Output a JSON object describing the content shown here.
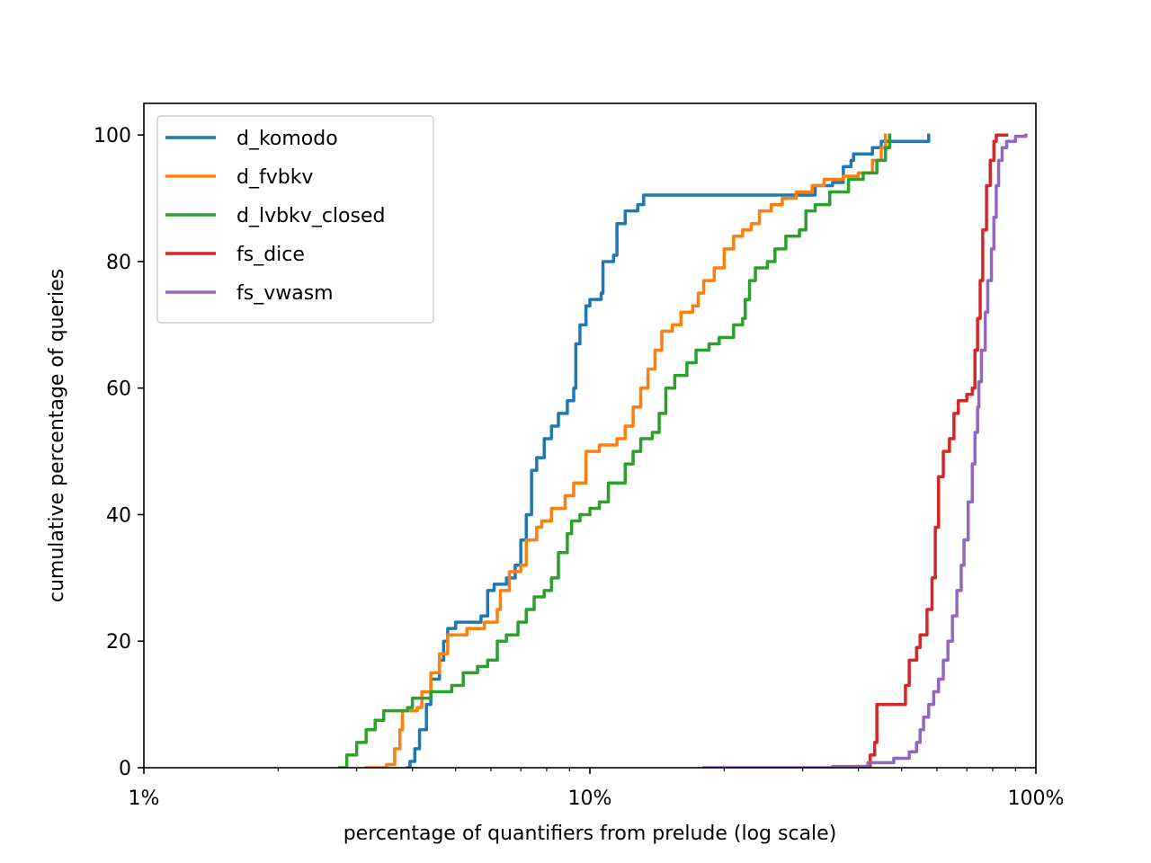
{
  "chart_data": {
    "type": "line",
    "title": "",
    "xlabel": "percentage of quantifiers from prelude (log scale)",
    "ylabel": "cumulative percentage of queries",
    "x_scale": "log",
    "xlim": [
      1,
      100
    ],
    "ylim": [
      0,
      105
    ],
    "x_ticks": [
      {
        "value": 1,
        "label": "1%"
      },
      {
        "value": 10,
        "label": "10%"
      },
      {
        "value": 100,
        "label": "100%"
      }
    ],
    "y_ticks": [
      {
        "value": 0,
        "label": "0"
      },
      {
        "value": 20,
        "label": "20"
      },
      {
        "value": 40,
        "label": "40"
      },
      {
        "value": 60,
        "label": "60"
      },
      {
        "value": 80,
        "label": "80"
      },
      {
        "value": 100,
        "label": "100"
      }
    ],
    "grid": false,
    "legend_position": "top-left",
    "series": [
      {
        "name": "d_komodo",
        "color": "#1f77b4",
        "points": [
          [
            3.9,
            0
          ],
          [
            3.95,
            1
          ],
          [
            4.05,
            3
          ],
          [
            4.15,
            6
          ],
          [
            4.3,
            10
          ],
          [
            4.4,
            14
          ],
          [
            4.6,
            17
          ],
          [
            4.7,
            20
          ],
          [
            4.8,
            22
          ],
          [
            5.0,
            23
          ],
          [
            5.5,
            23
          ],
          [
            5.7,
            24
          ],
          [
            5.9,
            28
          ],
          [
            6.1,
            29
          ],
          [
            6.5,
            30
          ],
          [
            6.8,
            32
          ],
          [
            7.0,
            36
          ],
          [
            7.2,
            40
          ],
          [
            7.4,
            47
          ],
          [
            7.6,
            49
          ],
          [
            7.9,
            52
          ],
          [
            8.2,
            54
          ],
          [
            8.5,
            56
          ],
          [
            8.9,
            58
          ],
          [
            9.2,
            60
          ],
          [
            9.3,
            67
          ],
          [
            9.5,
            70
          ],
          [
            9.8,
            73
          ],
          [
            10.0,
            74
          ],
          [
            10.6,
            75
          ],
          [
            10.7,
            80
          ],
          [
            11.3,
            81
          ],
          [
            11.5,
            86
          ],
          [
            12.0,
            88
          ],
          [
            12.8,
            89
          ],
          [
            13.2,
            90.5
          ],
          [
            27.0,
            90.5
          ],
          [
            32.0,
            92
          ],
          [
            35.0,
            92.5
          ],
          [
            37.0,
            95
          ],
          [
            38.5,
            96
          ],
          [
            39.0,
            97
          ],
          [
            43.0,
            98
          ],
          [
            45.0,
            99
          ],
          [
            56.0,
            99
          ],
          [
            57.5,
            100
          ]
        ]
      },
      {
        "name": "d_fvbkv",
        "color": "#ff7f0e",
        "points": [
          [
            3.15,
            0
          ],
          [
            3.5,
            0.5
          ],
          [
            3.65,
            3
          ],
          [
            3.75,
            6
          ],
          [
            3.8,
            9
          ],
          [
            4.1,
            9.5
          ],
          [
            4.2,
            12
          ],
          [
            4.4,
            15
          ],
          [
            4.6,
            18
          ],
          [
            4.8,
            21
          ],
          [
            5.3,
            22
          ],
          [
            5.8,
            23
          ],
          [
            6.2,
            25
          ],
          [
            6.3,
            28
          ],
          [
            6.6,
            31
          ],
          [
            7.0,
            32
          ],
          [
            7.2,
            36
          ],
          [
            7.6,
            38
          ],
          [
            7.8,
            39
          ],
          [
            8.2,
            41
          ],
          [
            8.8,
            43
          ],
          [
            9.2,
            45
          ],
          [
            9.8,
            50
          ],
          [
            10.5,
            51
          ],
          [
            11.5,
            52
          ],
          [
            12.0,
            54
          ],
          [
            12.5,
            57
          ],
          [
            13.0,
            60
          ],
          [
            13.5,
            63
          ],
          [
            14.0,
            66
          ],
          [
            14.5,
            69
          ],
          [
            15.3,
            70
          ],
          [
            16.0,
            72
          ],
          [
            17.0,
            73
          ],
          [
            17.5,
            75
          ],
          [
            18.0,
            77
          ],
          [
            19.0,
            79
          ],
          [
            20.0,
            82
          ],
          [
            21.0,
            84
          ],
          [
            22.0,
            85
          ],
          [
            23.0,
            86
          ],
          [
            24.0,
            88
          ],
          [
            25.5,
            89
          ],
          [
            27.0,
            90
          ],
          [
            29.0,
            91
          ],
          [
            31.5,
            92
          ],
          [
            33.5,
            93
          ],
          [
            37.0,
            93.5
          ],
          [
            40.0,
            94
          ],
          [
            43.0,
            96
          ],
          [
            45.0,
            98
          ],
          [
            46.0,
            100
          ]
        ]
      },
      {
        "name": "d_lvbkv_closed",
        "color": "#2ca02c",
        "points": [
          [
            2.75,
            0
          ],
          [
            2.85,
            2
          ],
          [
            3.0,
            4
          ],
          [
            3.15,
            6
          ],
          [
            3.3,
            7.5
          ],
          [
            3.45,
            9
          ],
          [
            3.9,
            9.5
          ],
          [
            4.0,
            11
          ],
          [
            4.4,
            12
          ],
          [
            4.9,
            13
          ],
          [
            5.2,
            15
          ],
          [
            5.6,
            16
          ],
          [
            5.9,
            17
          ],
          [
            6.2,
            20
          ],
          [
            6.5,
            21
          ],
          [
            6.9,
            23
          ],
          [
            7.2,
            25
          ],
          [
            7.5,
            27
          ],
          [
            7.9,
            28
          ],
          [
            8.2,
            30
          ],
          [
            8.5,
            34
          ],
          [
            8.9,
            37
          ],
          [
            9.1,
            39
          ],
          [
            9.5,
            40
          ],
          [
            10.0,
            41
          ],
          [
            10.5,
            42
          ],
          [
            11.0,
            45
          ],
          [
            12.0,
            48
          ],
          [
            12.5,
            50
          ],
          [
            13.0,
            52
          ],
          [
            13.8,
            53
          ],
          [
            14.3,
            56
          ],
          [
            14.8,
            60
          ],
          [
            15.5,
            62
          ],
          [
            16.5,
            64
          ],
          [
            17.3,
            66
          ],
          [
            18.5,
            67
          ],
          [
            19.5,
            68
          ],
          [
            21.0,
            70
          ],
          [
            22.0,
            71
          ],
          [
            22.3,
            74
          ],
          [
            22.8,
            77
          ],
          [
            23.5,
            79
          ],
          [
            25.0,
            80
          ],
          [
            26.0,
            82
          ],
          [
            27.5,
            84
          ],
          [
            29.5,
            85
          ],
          [
            30.5,
            88
          ],
          [
            32.0,
            89
          ],
          [
            34.5,
            91
          ],
          [
            38.0,
            93
          ],
          [
            41.0,
            94
          ],
          [
            44.0,
            96
          ],
          [
            46.0,
            98
          ],
          [
            47.0,
            100
          ]
        ]
      },
      {
        "name": "fs_dice",
        "color": "#d62728",
        "points": [
          [
            41.5,
            0
          ],
          [
            42.5,
            2
          ],
          [
            43.5,
            4
          ],
          [
            44.0,
            10
          ],
          [
            50.0,
            10
          ],
          [
            51.0,
            13
          ],
          [
            52.0,
            17
          ],
          [
            54.0,
            19
          ],
          [
            55.0,
            21
          ],
          [
            57.0,
            25
          ],
          [
            58.5,
            30
          ],
          [
            59.5,
            38
          ],
          [
            60.5,
            46
          ],
          [
            62.0,
            50
          ],
          [
            64.0,
            52
          ],
          [
            65.5,
            56
          ],
          [
            67.0,
            58
          ],
          [
            70.0,
            59
          ],
          [
            72.0,
            60
          ],
          [
            73.0,
            66
          ],
          [
            74.0,
            71
          ],
          [
            75.0,
            77
          ],
          [
            76.0,
            85
          ],
          [
            77.5,
            92
          ],
          [
            79.0,
            96
          ],
          [
            80.5,
            99
          ],
          [
            81.5,
            100
          ],
          [
            86.0,
            100
          ]
        ]
      },
      {
        "name": "fs_vwasm",
        "color": "#9467bd",
        "points": [
          [
            18.0,
            0
          ],
          [
            35.0,
            0.2
          ],
          [
            42.0,
            0.8
          ],
          [
            48.0,
            1.5
          ],
          [
            52.0,
            2.5
          ],
          [
            54.0,
            4
          ],
          [
            55.0,
            6
          ],
          [
            56.0,
            8
          ],
          [
            57.5,
            10
          ],
          [
            59.0,
            12
          ],
          [
            60.5,
            14
          ],
          [
            62.0,
            17
          ],
          [
            63.5,
            20
          ],
          [
            65.0,
            24
          ],
          [
            66.5,
            28
          ],
          [
            68.0,
            32
          ],
          [
            69.0,
            36
          ],
          [
            70.5,
            42
          ],
          [
            72.0,
            48
          ],
          [
            73.0,
            53
          ],
          [
            74.0,
            57
          ],
          [
            74.5,
            61
          ],
          [
            75.5,
            66
          ],
          [
            77.0,
            72
          ],
          [
            78.0,
            77
          ],
          [
            79.5,
            82
          ],
          [
            80.5,
            87
          ],
          [
            81.5,
            92
          ],
          [
            82.5,
            96
          ],
          [
            84.0,
            98
          ],
          [
            86.0,
            99
          ],
          [
            90.0,
            99.8
          ],
          [
            95.0,
            100
          ]
        ]
      }
    ]
  }
}
